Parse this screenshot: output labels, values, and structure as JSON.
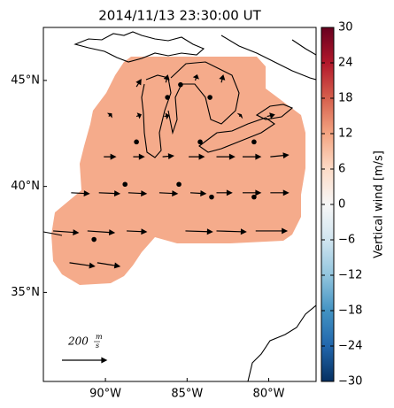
{
  "chart_data": {
    "type": "vector-map",
    "title": "2014/11/13 23:30:00 UT",
    "xlim": [
      -93.8,
      -77.1
    ],
    "ylim": [
      30.8,
      47.5
    ],
    "xticks": [
      {
        "value": -90,
        "label": "90°W"
      },
      {
        "value": -85,
        "label": "85°W"
      },
      {
        "value": -80,
        "label": "80°W"
      }
    ],
    "yticks": [
      {
        "value": 35,
        "label": "35°N"
      },
      {
        "value": 40,
        "label": "40°N"
      },
      {
        "value": 45,
        "label": "45°N"
      }
    ],
    "field_color": "#f5ab8b",
    "wind_vectors": {
      "lon": [
        -92.2,
        -90.5,
        -93.2,
        -91.1,
        -88.7,
        -85.1,
        -83.2,
        -80.8,
        -92.1,
        -90.4,
        -88.6,
        -86.7,
        -84.8,
        -83.2,
        -81.6,
        -79.9,
        -90.1,
        -88.3,
        -86.5,
        -84.9,
        -83.2,
        -81.6,
        -79.9,
        -89.8,
        -88.1,
        -86.4,
        -81.8,
        -80.1,
        -88.1,
        -86.3,
        -84.5,
        -82.9
      ],
      "lat": [
        36.4,
        36.4,
        37.9,
        37.9,
        37.9,
        37.9,
        37.9,
        37.9,
        39.7,
        39.7,
        39.7,
        39.7,
        39.7,
        39.7,
        39.7,
        39.7,
        41.4,
        41.4,
        41.4,
        41.4,
        41.4,
        41.4,
        41.4,
        43.3,
        43.3,
        43.3,
        43.3,
        43.3,
        44.7,
        44.9,
        45.0,
        44.9
      ],
      "u": [
        112,
        100,
        112,
        120,
        88,
        120,
        132,
        140,
        80,
        92,
        80,
        80,
        68,
        68,
        80,
        80,
        52,
        48,
        48,
        68,
        80,
        80,
        80,
        12,
        20,
        20,
        8,
        32,
        20,
        8,
        8,
        8
      ],
      "v": [
        -16,
        -16,
        -8,
        -8,
        -4,
        -4,
        -4,
        0,
        -4,
        -4,
        -4,
        -4,
        -4,
        0,
        0,
        0,
        0,
        0,
        4,
        0,
        0,
        0,
        8,
        12,
        8,
        4,
        8,
        8,
        32,
        32,
        24,
        32
      ]
    },
    "stations": {
      "lon": [
        -88.1,
        -84.2,
        -80.9,
        -86.2,
        -85.4,
        -83.6,
        -88.8,
        -85.5,
        -83.5,
        -80.9,
        -90.7
      ],
      "lat": [
        42.1,
        42.1,
        42.1,
        44.2,
        44.8,
        44.2,
        40.1,
        40.1,
        39.5,
        39.5,
        37.5
      ]
    },
    "scale": {
      "value": 200,
      "label": "200",
      "unit_top": "m",
      "unit_bottom": "s"
    },
    "colorbar": {
      "label": "Vertical wind [m/s]",
      "lim": [
        -30,
        30
      ],
      "ticks": [
        {
          "value": -30,
          "label": "−30"
        },
        {
          "value": -24,
          "label": "−24"
        },
        {
          "value": -18,
          "label": "−18"
        },
        {
          "value": -12,
          "label": "−12"
        },
        {
          "value": -6,
          "label": "−6"
        },
        0,
        6,
        12,
        18,
        24,
        30
      ],
      "colors": [
        "#053061",
        "#2166ac",
        "#4393c3",
        "#92c5de",
        "#d1e5f0",
        "#f7f7f7",
        "#fddbc7",
        "#f4a582",
        "#d6604d",
        "#b2182b",
        "#67001f"
      ]
    }
  }
}
